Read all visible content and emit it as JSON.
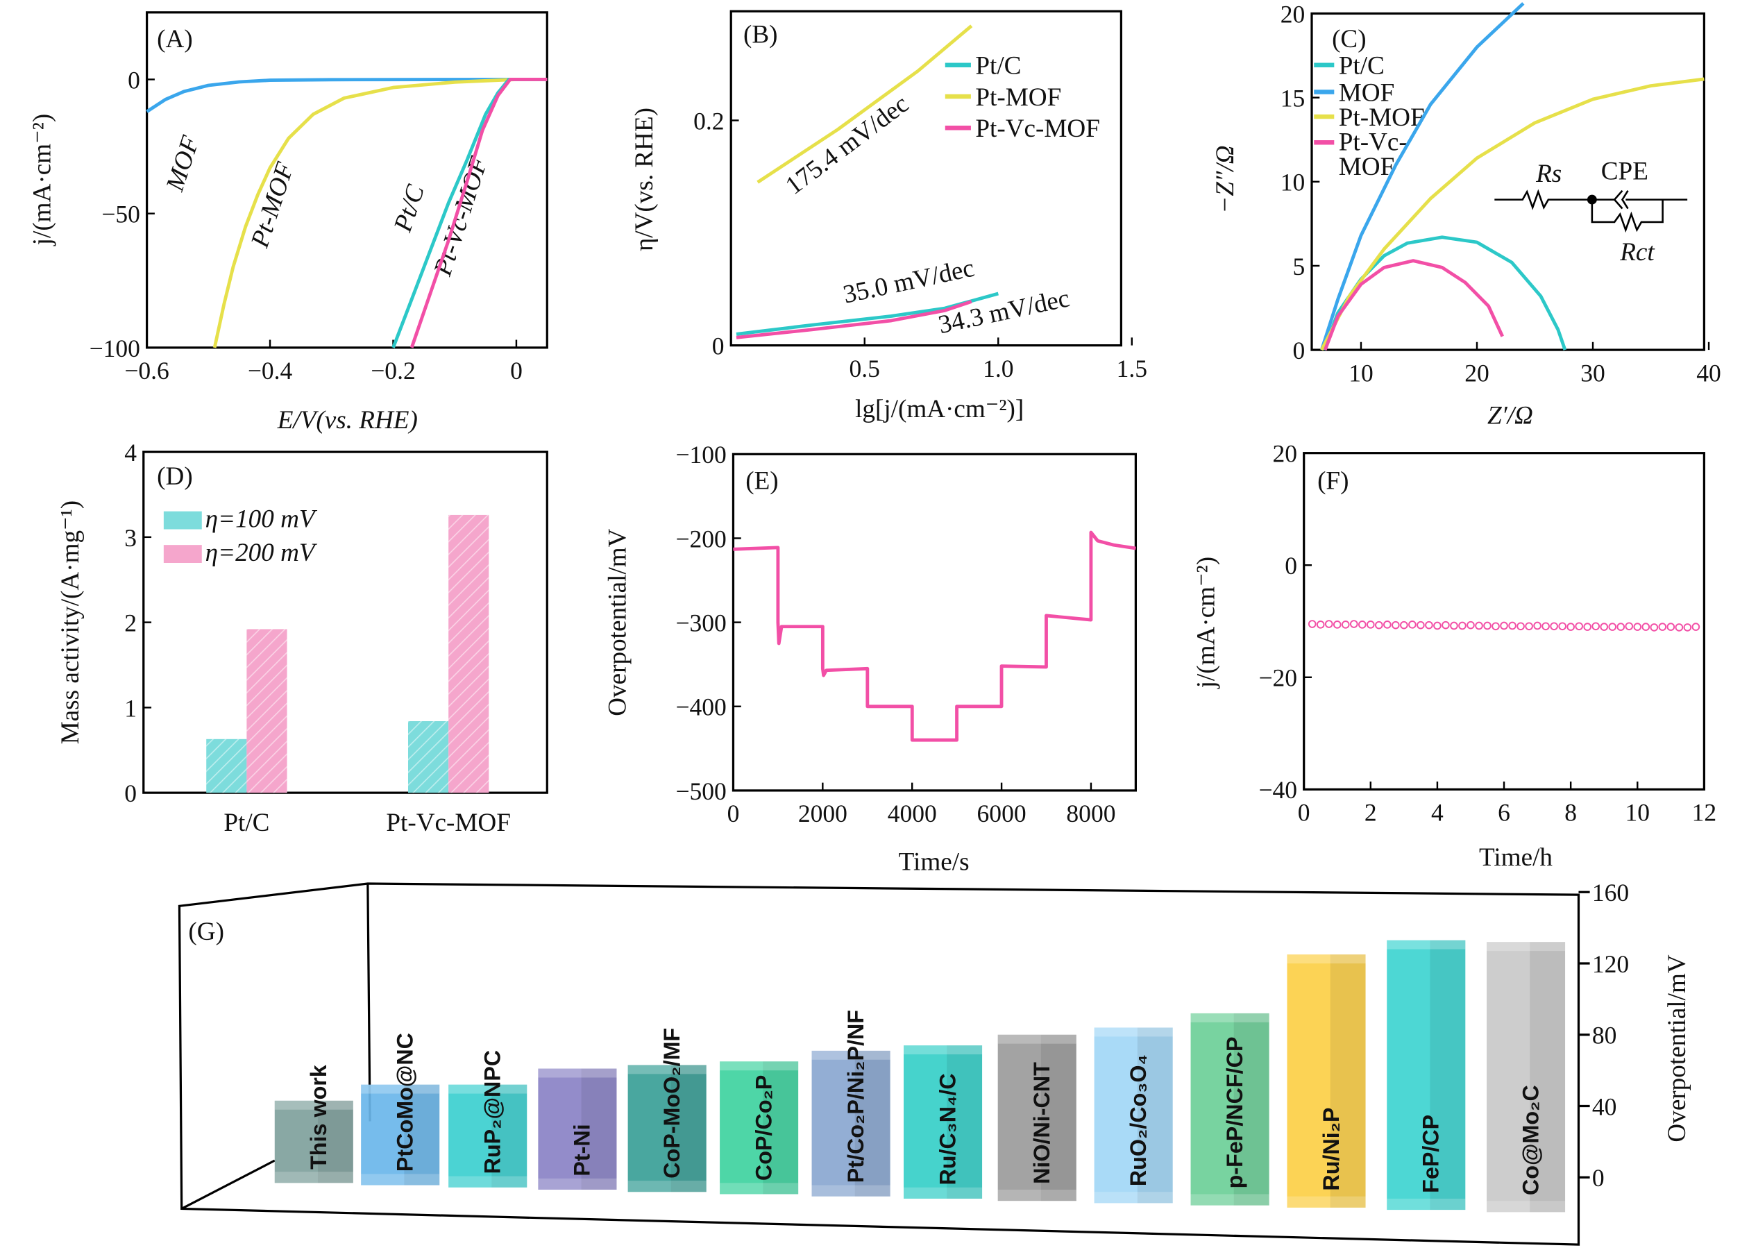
{
  "colors": {
    "ptc": "#2cc8c8",
    "mof": "#3aa6ec",
    "ptmof": "#e6e04a",
    "ptvc": "#f24fa6",
    "bar100": "#7ddcdc",
    "bar200": "#f5a6cc"
  },
  "chart_data": [
    {
      "id": "A",
      "type": "line",
      "panel_label": "(A)",
      "xlabel": "E/V(vs. RHE)",
      "ylabel": "j/(mA·cm⁻²)",
      "xlim": [
        -0.6,
        0.05
      ],
      "ylim": [
        -100,
        25
      ],
      "xticks": [
        {
          "v": -0.6,
          "t": "−0.6"
        },
        {
          "v": -0.4,
          "t": "−0.4"
        },
        {
          "v": -0.2,
          "t": "−0.2"
        },
        {
          "v": 0,
          "t": "0"
        }
      ],
      "yticks": [
        {
          "v": 0,
          "t": "0"
        },
        {
          "v": -50,
          "t": "−50"
        },
        {
          "v": -100,
          "t": "−100"
        }
      ],
      "series": [
        {
          "name": "MOF",
          "color": "mof",
          "points": [
            [
              -0.6,
              -12
            ],
            [
              -0.57,
              -7.5
            ],
            [
              -0.54,
              -4.5
            ],
            [
              -0.5,
              -2.2
            ],
            [
              -0.45,
              -0.9
            ],
            [
              -0.4,
              -0.3
            ],
            [
              -0.3,
              -0.1
            ],
            [
              0.05,
              0
            ]
          ]
        },
        {
          "name": "Pt-MOF",
          "color": "ptmof",
          "points": [
            [
              -0.49,
              -100
            ],
            [
              -0.475,
              -84
            ],
            [
              -0.46,
              -70
            ],
            [
              -0.44,
              -55
            ],
            [
              -0.42,
              -43
            ],
            [
              -0.4,
              -33
            ],
            [
              -0.37,
              -22
            ],
            [
              -0.33,
              -13
            ],
            [
              -0.28,
              -7
            ],
            [
              -0.2,
              -3
            ],
            [
              -0.1,
              -1
            ],
            [
              0,
              0
            ],
            [
              0.05,
              0
            ]
          ]
        },
        {
          "name": "Pt/C",
          "color": "ptc",
          "points": [
            [
              -0.2,
              -100
            ],
            [
              -0.17,
              -82
            ],
            [
              -0.14,
              -64
            ],
            [
              -0.11,
              -46
            ],
            [
              -0.08,
              -30
            ],
            [
              -0.05,
              -13
            ],
            [
              -0.03,
              -5
            ],
            [
              -0.012,
              0
            ],
            [
              0.05,
              0
            ]
          ]
        },
        {
          "name": "Pt-Vc-MOF",
          "color": "ptvc",
          "points": [
            [
              -0.17,
              -100
            ],
            [
              -0.14,
              -80
            ],
            [
              -0.11,
              -60
            ],
            [
              -0.08,
              -38
            ],
            [
              -0.055,
              -19
            ],
            [
              -0.03,
              -6
            ],
            [
              -0.01,
              0
            ],
            [
              0.05,
              0
            ]
          ]
        }
      ],
      "annotations": [
        "MOF",
        "Pt-MOF",
        "Pt/C",
        "Pt-Vc-MOF"
      ]
    },
    {
      "id": "B",
      "type": "line",
      "panel_label": "(B)",
      "xlabel": "lg[j/(mA·cm⁻²)]",
      "ylabel": "η/V(vs. RHE)",
      "xlim": [
        0,
        1.46
      ],
      "ylim": [
        0,
        0.297
      ],
      "xticks": [
        {
          "v": 0.5,
          "t": "0.5"
        },
        {
          "v": 1.0,
          "t": "1.0"
        },
        {
          "v": 1.5,
          "t": "1.5"
        }
      ],
      "yticks": [
        {
          "v": 0,
          "t": "0"
        },
        {
          "v": 0.2,
          "t": "0.2"
        }
      ],
      "legend": [
        "Pt/C",
        "Pt-MOF",
        "Pt-Vc-MOF"
      ],
      "legend_position": "top-right",
      "series": [
        {
          "name": "Pt/C",
          "color": "ptc",
          "points": [
            [
              0.02,
              0.01
            ],
            [
              0.3,
              0.018
            ],
            [
              0.6,
              0.026
            ],
            [
              0.8,
              0.033
            ],
            [
              1.0,
              0.046
            ]
          ]
        },
        {
          "name": "Pt-MOF",
          "color": "ptmof",
          "points": [
            [
              0.1,
              0.145
            ],
            [
              0.4,
              0.192
            ],
            [
              0.7,
              0.244
            ],
            [
              0.9,
              0.284
            ]
          ]
        },
        {
          "name": "Pt-Vc-MOF",
          "color": "ptvc",
          "points": [
            [
              0.02,
              0.007
            ],
            [
              0.3,
              0.014
            ],
            [
              0.6,
              0.022
            ],
            [
              0.8,
              0.031
            ],
            [
              0.9,
              0.039
            ]
          ]
        }
      ],
      "annotations": [
        "175.4 mV/dec",
        "35.0 mV/dec",
        "34.3 mV/dec"
      ]
    },
    {
      "id": "C",
      "type": "line",
      "panel_label": "(C)",
      "xlabel": "Z′/Ω",
      "ylabel": "−Z″/Ω",
      "xlim": [
        5.75,
        39.6
      ],
      "ylim": [
        0,
        20
      ],
      "xticks": [
        {
          "v": 10,
          "t": "10"
        },
        {
          "v": 20,
          "t": "20"
        },
        {
          "v": 30,
          "t": "30"
        },
        {
          "v": 40,
          "t": "40"
        }
      ],
      "yticks": [
        {
          "v": 0,
          "t": "0"
        },
        {
          "v": 5,
          "t": "5"
        },
        {
          "v": 10,
          "t": "10"
        },
        {
          "v": 15,
          "t": "15"
        },
        {
          "v": 20,
          "t": "20"
        }
      ],
      "legend": [
        "Pt/C",
        "MOF",
        "Pt-MOF",
        "Pt-Vc-",
        "MOF"
      ],
      "legend_position": "top-left",
      "series": [
        {
          "name": "Pt/C",
          "color": "ptc",
          "points": [
            [
              6.8,
              0
            ],
            [
              8,
              2.2
            ],
            [
              10,
              4.2
            ],
            [
              12,
              5.6
            ],
            [
              14,
              6.35
            ],
            [
              17,
              6.7
            ],
            [
              20,
              6.4
            ],
            [
              23,
              5.2
            ],
            [
              25.5,
              3.2
            ],
            [
              27,
              1.2
            ],
            [
              27.6,
              0
            ]
          ]
        },
        {
          "name": "MOF",
          "color": "mof",
          "points": [
            [
              6.6,
              0
            ],
            [
              8,
              3
            ],
            [
              10,
              6.8
            ],
            [
              13,
              11
            ],
            [
              16,
              14.6
            ],
            [
              20,
              18
            ],
            [
              24,
              20.6
            ]
          ]
        },
        {
          "name": "Pt-MOF",
          "color": "ptmof",
          "points": [
            [
              6.6,
              0
            ],
            [
              9,
              3.2
            ],
            [
              12,
              6
            ],
            [
              16,
              9
            ],
            [
              20,
              11.4
            ],
            [
              25,
              13.5
            ],
            [
              30,
              14.9
            ],
            [
              35,
              15.7
            ],
            [
              39.6,
              16.1
            ]
          ]
        },
        {
          "name": "Pt-Vc-MOF",
          "color": "ptvc",
          "points": [
            [
              6.9,
              0
            ],
            [
              8,
              2
            ],
            [
              10,
              3.9
            ],
            [
              12,
              4.9
            ],
            [
              14.5,
              5.3
            ],
            [
              17,
              4.9
            ],
            [
              19,
              4
            ],
            [
              21,
              2.6
            ],
            [
              22.2,
              0.8
            ]
          ]
        }
      ],
      "circuit": {
        "rs": "Rs",
        "cpe": "CPE",
        "rct": "Rct"
      }
    },
    {
      "id": "D",
      "type": "bar",
      "panel_label": "(D)",
      "xlabel": "",
      "ylabel": "Mass activity/(A·mg⁻¹)",
      "ylim": [
        0,
        4
      ],
      "yticks": [
        {
          "v": 0,
          "t": "0"
        },
        {
          "v": 1,
          "t": "1"
        },
        {
          "v": 2,
          "t": "2"
        },
        {
          "v": 3,
          "t": "3"
        },
        {
          "v": 4,
          "t": "4"
        }
      ],
      "categories": [
        "Pt/C",
        "Pt-Vc-MOF"
      ],
      "series": [
        {
          "name": "η=100 mV",
          "color": "bar100",
          "values": [
            0.63,
            0.84
          ]
        },
        {
          "name": "η=200 mV",
          "color": "bar200",
          "values": [
            1.92,
            3.26
          ]
        }
      ],
      "legend_position": "top-left"
    },
    {
      "id": "E",
      "type": "line",
      "panel_label": "(E)",
      "xlabel": "Time/s",
      "ylabel": "Overpotential/mV",
      "xlim": [
        0,
        9000
      ],
      "ylim": [
        -500,
        -100
      ],
      "xticks": [
        {
          "v": 0,
          "t": "0"
        },
        {
          "v": 2000,
          "t": "2000"
        },
        {
          "v": 4000,
          "t": "4000"
        },
        {
          "v": 6000,
          "t": "6000"
        },
        {
          "v": 8000,
          "t": "8000"
        }
      ],
      "yticks": [
        {
          "v": -100,
          "t": "−100"
        },
        {
          "v": -200,
          "t": "−200"
        },
        {
          "v": -300,
          "t": "−300"
        },
        {
          "v": -400,
          "t": "−400"
        },
        {
          "v": -500,
          "t": "−500"
        }
      ],
      "series": [
        {
          "name": "Pt-Vc-MOF",
          "color": "ptvc",
          "points": [
            [
              0,
              -213
            ],
            [
              1000,
              -211
            ],
            [
              1000,
              -300
            ],
            [
              1020,
              -325
            ],
            [
              1080,
              -305
            ],
            [
              2000,
              -305
            ],
            [
              2000,
              -355
            ],
            [
              2020,
              -363
            ],
            [
              2080,
              -357
            ],
            [
              3000,
              -355
            ],
            [
              3000,
              -400
            ],
            [
              4000,
              -400
            ],
            [
              4000,
              -440
            ],
            [
              5000,
              -440
            ],
            [
              5000,
              -400
            ],
            [
              6000,
              -400
            ],
            [
              6000,
              -352
            ],
            [
              7000,
              -353
            ],
            [
              7000,
              -292
            ],
            [
              8000,
              -297
            ],
            [
              8000,
              -193
            ],
            [
              8150,
              -203
            ],
            [
              8500,
              -208
            ],
            [
              9000,
              -212
            ]
          ]
        }
      ]
    },
    {
      "id": "F",
      "type": "scatter",
      "panel_label": "(F)",
      "xlabel": "Time/h",
      "ylabel": "j/(mA·cm⁻²)",
      "xlim": [
        0,
        12
      ],
      "ylim": [
        -40,
        20
      ],
      "xticks": [
        {
          "v": 0,
          "t": "0"
        },
        {
          "v": 2,
          "t": "2"
        },
        {
          "v": 4,
          "t": "4"
        },
        {
          "v": 6,
          "t": "6"
        },
        {
          "v": 8,
          "t": "8"
        },
        {
          "v": 10,
          "t": "10"
        },
        {
          "v": 12,
          "t": "12"
        }
      ],
      "yticks": [
        {
          "v": 20,
          "t": "20"
        },
        {
          "v": 0,
          "t": "0"
        },
        {
          "v": -20,
          "t": "−20"
        },
        {
          "v": -40,
          "t": "−40"
        }
      ],
      "series": [
        {
          "name": "Pt-Vc-MOF",
          "color": "ptvc",
          "x_start": 0.25,
          "x_step": 0.25,
          "values": [
            -10.5,
            -10.6,
            -10.5,
            -10.6,
            -10.6,
            -10.5,
            -10.6,
            -10.6,
            -10.7,
            -10.6,
            -10.7,
            -10.7,
            -10.6,
            -10.7,
            -10.7,
            -10.8,
            -10.7,
            -10.8,
            -10.8,
            -10.7,
            -10.8,
            -10.8,
            -10.9,
            -10.8,
            -10.8,
            -10.9,
            -10.9,
            -10.8,
            -10.9,
            -10.9,
            -10.9,
            -11.0,
            -10.9,
            -11.0,
            -10.9,
            -11.0,
            -11.0,
            -11.0,
            -10.9,
            -11.0,
            -11.0,
            -11.1,
            -11.0,
            -11.0,
            -11.1,
            -11.1,
            -11.0
          ]
        }
      ]
    },
    {
      "id": "G",
      "type": "bar",
      "panel_label": "(G)",
      "ylabel": "Overpotential/mV",
      "ylim": [
        0,
        160
      ],
      "yticks": [
        {
          "v": 0,
          "t": "0"
        },
        {
          "v": 40,
          "t": "40"
        },
        {
          "v": 80,
          "t": "80"
        },
        {
          "v": 120,
          "t": "120"
        },
        {
          "v": 160,
          "t": "160"
        }
      ],
      "categories": [
        "This work",
        "PtCoMo@NC",
        "RuP₂@NPC",
        "Pt-Ni",
        "CoP-MoO₂/MF",
        "CoP/Co₂P",
        "Pt/Co₂P/Ni₂P/NF",
        "Ru/C₃N₄/C",
        "NiO/Ni-CNT",
        "RuO₂/Co₃O₄",
        "p-FeP/NCF/CP",
        "Ru/Ni₂P",
        "FeP/CP",
        "Co@Mo₂C"
      ],
      "values": [
        43,
        52,
        52,
        61,
        63,
        65,
        71,
        74,
        80,
        84,
        92,
        125,
        133,
        132
      ],
      "bar_colors": [
        "#7fa19c",
        "#6ab6ea",
        "#3ccfcf",
        "#8a82c6",
        "#3a9f97",
        "#3fd39f",
        "#8aa7d0",
        "#36cfc8",
        "#9b9b9b",
        "#a2d7f6",
        "#6ccf98",
        "#fccf47",
        "#3ed4d0",
        "#c9c9c9"
      ]
    }
  ]
}
